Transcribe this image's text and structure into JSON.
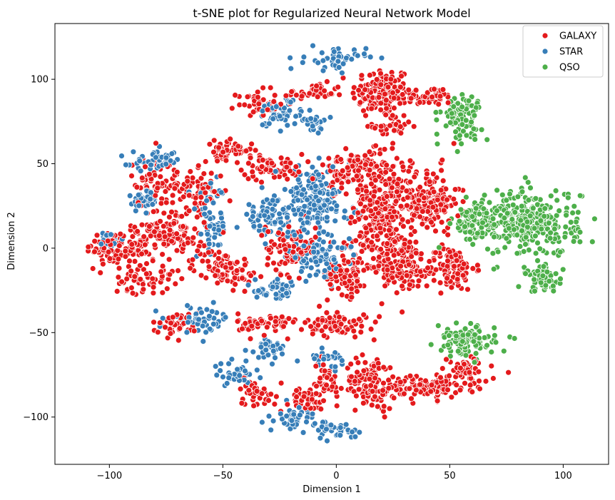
{
  "chart_data": {
    "type": "scatter",
    "title": "t-SNE plot for Regularized Neural Network Model",
    "xlabel": "Dimension 1",
    "ylabel": "Dimension 2",
    "xlim": [
      -124,
      120
    ],
    "ylim": [
      -128,
      133
    ],
    "xticks": [
      -100,
      -50,
      0,
      50,
      100
    ],
    "yticks": [
      -100,
      -50,
      0,
      50,
      100
    ],
    "grid": false,
    "legend_position": "top-right",
    "series": [
      {
        "name": "GALAXY",
        "color": "#e41a1c",
        "clusters": [
          {
            "cx": 20,
            "cy": 92,
            "rx": 12,
            "ry": 14,
            "n": 140
          },
          {
            "cx": 40,
            "cy": 90,
            "rx": 12,
            "ry": 5,
            "n": 50
          },
          {
            "cx": -10,
            "cy": 92,
            "rx": 12,
            "ry": 5,
            "n": 40
          },
          {
            "cx": -35,
            "cy": 86,
            "rx": 8,
            "ry": 7,
            "n": 40
          },
          {
            "cx": 25,
            "cy": 72,
            "rx": 8,
            "ry": 5,
            "n": 35
          },
          {
            "cx": -28,
            "cy": 48,
            "rx": 12,
            "ry": 7,
            "n": 60
          },
          {
            "cx": 5,
            "cy": 45,
            "rx": 12,
            "ry": 10,
            "n": 90
          },
          {
            "cx": 20,
            "cy": 20,
            "rx": 12,
            "ry": 35,
            "n": 280
          },
          {
            "cx": 40,
            "cy": 28,
            "rx": 13,
            "ry": 18,
            "n": 160
          },
          {
            "cx": 50,
            "cy": -12,
            "rx": 10,
            "ry": 12,
            "n": 110
          },
          {
            "cx": 30,
            "cy": -10,
            "rx": 10,
            "ry": 14,
            "n": 110
          },
          {
            "cx": 5,
            "cy": -15,
            "rx": 8,
            "ry": 12,
            "n": 90
          },
          {
            "cx": -20,
            "cy": 0,
            "rx": 10,
            "ry": 14,
            "n": 90
          },
          {
            "cx": -48,
            "cy": 58,
            "rx": 10,
            "ry": 5,
            "n": 50
          },
          {
            "cx": -62,
            "cy": 35,
            "rx": 12,
            "ry": 10,
            "n": 70
          },
          {
            "cx": -72,
            "cy": 10,
            "rx": 14,
            "ry": 14,
            "n": 120
          },
          {
            "cx": -95,
            "cy": 0,
            "rx": 14,
            "ry": 10,
            "n": 110
          },
          {
            "cx": -85,
            "cy": -18,
            "rx": 12,
            "ry": 8,
            "n": 60
          },
          {
            "cx": -50,
            "cy": -12,
            "rx": 12,
            "ry": 10,
            "n": 80
          },
          {
            "cx": -80,
            "cy": 40,
            "rx": 10,
            "ry": 14,
            "n": 60
          },
          {
            "cx": -30,
            "cy": -45,
            "rx": 12,
            "ry": 6,
            "n": 60
          },
          {
            "cx": 0,
            "cy": -45,
            "rx": 12,
            "ry": 7,
            "n": 80
          },
          {
            "cx": -70,
            "cy": -45,
            "rx": 10,
            "ry": 6,
            "n": 40
          },
          {
            "cx": -35,
            "cy": -85,
            "rx": 8,
            "ry": 8,
            "n": 35
          },
          {
            "cx": -15,
            "cy": -90,
            "rx": 10,
            "ry": 7,
            "n": 40
          },
          {
            "cx": -5,
            "cy": -80,
            "rx": 6,
            "ry": 12,
            "n": 40
          },
          {
            "cx": 15,
            "cy": -80,
            "rx": 10,
            "ry": 14,
            "n": 120
          },
          {
            "cx": 40,
            "cy": -82,
            "rx": 18,
            "ry": 7,
            "n": 130
          },
          {
            "cx": 58,
            "cy": -72,
            "rx": 8,
            "ry": 7,
            "n": 50
          }
        ]
      },
      {
        "name": "STAR",
        "color": "#377eb8",
        "clusters": [
          {
            "cx": 0,
            "cy": 112,
            "rx": 12,
            "ry": 6,
            "n": 45
          },
          {
            "cx": -25,
            "cy": 80,
            "rx": 10,
            "ry": 8,
            "n": 50
          },
          {
            "cx": -10,
            "cy": 75,
            "rx": 6,
            "ry": 6,
            "n": 25
          },
          {
            "cx": -10,
            "cy": 28,
            "rx": 15,
            "ry": 18,
            "n": 190
          },
          {
            "cx": -8,
            "cy": -5,
            "rx": 12,
            "ry": 10,
            "n": 90
          },
          {
            "cx": -30,
            "cy": 18,
            "rx": 10,
            "ry": 10,
            "n": 70
          },
          {
            "cx": -55,
            "cy": 15,
            "rx": 6,
            "ry": 20,
            "n": 60
          },
          {
            "cx": -80,
            "cy": 52,
            "rx": 10,
            "ry": 5,
            "n": 50
          },
          {
            "cx": -85,
            "cy": 28,
            "rx": 6,
            "ry": 5,
            "n": 35
          },
          {
            "cx": -25,
            "cy": -25,
            "rx": 10,
            "ry": 5,
            "n": 45
          },
          {
            "cx": -60,
            "cy": -42,
            "rx": 12,
            "ry": 7,
            "n": 45
          },
          {
            "cx": -30,
            "cy": -60,
            "rx": 8,
            "ry": 6,
            "n": 35
          },
          {
            "cx": -45,
            "cy": -75,
            "rx": 8,
            "ry": 6,
            "n": 35
          },
          {
            "cx": -18,
            "cy": -100,
            "rx": 8,
            "ry": 6,
            "n": 40
          },
          {
            "cx": 0,
            "cy": -108,
            "rx": 8,
            "ry": 5,
            "n": 35
          },
          {
            "cx": -5,
            "cy": -65,
            "rx": 8,
            "ry": 4,
            "n": 25
          },
          {
            "cx": -100,
            "cy": 5,
            "rx": 6,
            "ry": 5,
            "n": 25
          }
        ]
      },
      {
        "name": "QSO",
        "color": "#4daf4a",
        "clusters": [
          {
            "cx": 55,
            "cy": 78,
            "rx": 8,
            "ry": 12,
            "n": 90
          },
          {
            "cx": 85,
            "cy": 15,
            "rx": 20,
            "ry": 18,
            "n": 320
          },
          {
            "cx": 92,
            "cy": -18,
            "rx": 8,
            "ry": 7,
            "n": 60
          },
          {
            "cx": 60,
            "cy": 15,
            "rx": 8,
            "ry": 10,
            "n": 70
          },
          {
            "cx": 57,
            "cy": -55,
            "rx": 12,
            "ry": 8,
            "n": 110
          }
        ]
      }
    ]
  }
}
